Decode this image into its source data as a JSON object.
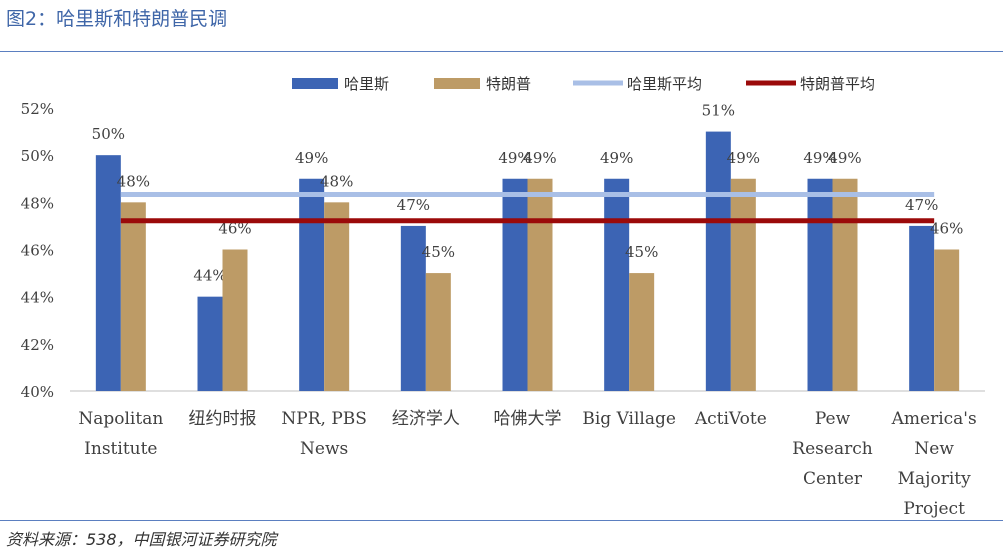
{
  "page": {
    "title": "图2：哈里斯和特朗普民调",
    "source": "资料来源：538，中国银河证券研究院"
  },
  "chart_data": {
    "type": "bar",
    "title": "",
    "xlabel": "",
    "ylabel": "",
    "ylim": [
      40,
      52
    ],
    "yticks": [
      "40%",
      "42%",
      "44%",
      "46%",
      "48%",
      "50%",
      "52%"
    ],
    "legend_position": "top",
    "categories": [
      [
        "Napolitan",
        "Institute"
      ],
      [
        "纽约时报"
      ],
      [
        "NPR, PBS",
        "News"
      ],
      [
        "经济学人"
      ],
      [
        "哈佛大学"
      ],
      [
        "Big Village"
      ],
      [
        "ActiVote"
      ],
      [
        "Pew",
        "Research",
        "Center"
      ],
      [
        "America's",
        "New",
        "Majority",
        "Project"
      ]
    ],
    "series": [
      {
        "name": "哈里斯",
        "color": "#3c64b4",
        "values": [
          50,
          44,
          49,
          47,
          49,
          49,
          51,
          49,
          47
        ],
        "labels": [
          "50%",
          "44%",
          "49%",
          "47%",
          "49%",
          "49%",
          "51%",
          "49%",
          "47%"
        ]
      },
      {
        "name": "特朗普",
        "color": "#bd9b66",
        "values": [
          48,
          46,
          48,
          45,
          49,
          45,
          49,
          49,
          46
        ],
        "labels": [
          "48%",
          "46%",
          "48%",
          "45%",
          "49%",
          "45%",
          "49%",
          "49%",
          "46%"
        ]
      }
    ],
    "reference_lines": [
      {
        "name": "哈里斯平均",
        "color": "#a9bfe6",
        "value": 48.33
      },
      {
        "name": "特朗普平均",
        "color": "#9b0a0a",
        "value": 47.22
      }
    ]
  }
}
